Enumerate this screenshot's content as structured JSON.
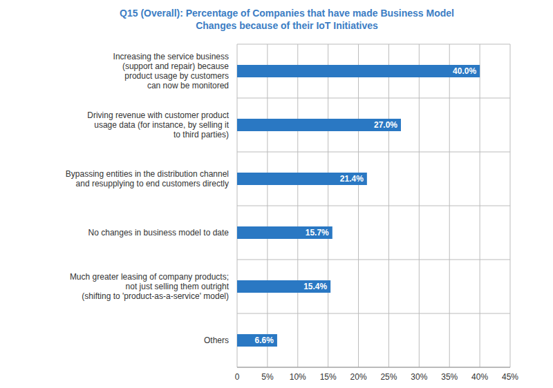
{
  "chart_data": {
    "type": "bar",
    "title": "Q15 (Overall): Percentage of Companies that have made Business Model Changes because of their IoT Initiatives",
    "orientation": "horizontal",
    "categories": [
      "Increasing the service business\n(support and repair) because\nproduct usage by customers\ncan now be monitored",
      "Driving revenue with customer product\nusage data (for instance, by selling it\nto third parties)",
      "Bypassing entities in the distribution channel\nand resupplying to end customers directly",
      "No changes in business model to date",
      "Much greater leasing of company products;\nnot just selling them outright\n(shifting to 'product-as-a-service' model)",
      "Others"
    ],
    "values": [
      40.0,
      27.0,
      21.4,
      15.7,
      15.4,
      6.6
    ],
    "value_labels": [
      "40.0%",
      "27.0%",
      "21.4%",
      "15.7%",
      "15.4%",
      "6.6%"
    ],
    "color": "#2a78c3",
    "xlim": [
      0,
      45
    ],
    "xticks": [
      0,
      {
        "value": 5,
        "label": "5%"
      },
      {
        "value": 10,
        "label": "10%"
      },
      {
        "value": 15,
        "label": "15%"
      },
      {
        "value": 20,
        "label": "20%"
      },
      {
        "value": 25,
        "label": "25%"
      },
      {
        "value": 30,
        "label": "30%"
      },
      {
        "value": 35,
        "label": "35%"
      },
      {
        "value": 40,
        "label": "40%"
      },
      {
        "value": 45,
        "label": "45%"
      }
    ],
    "grid": true,
    "data_labels": true
  }
}
